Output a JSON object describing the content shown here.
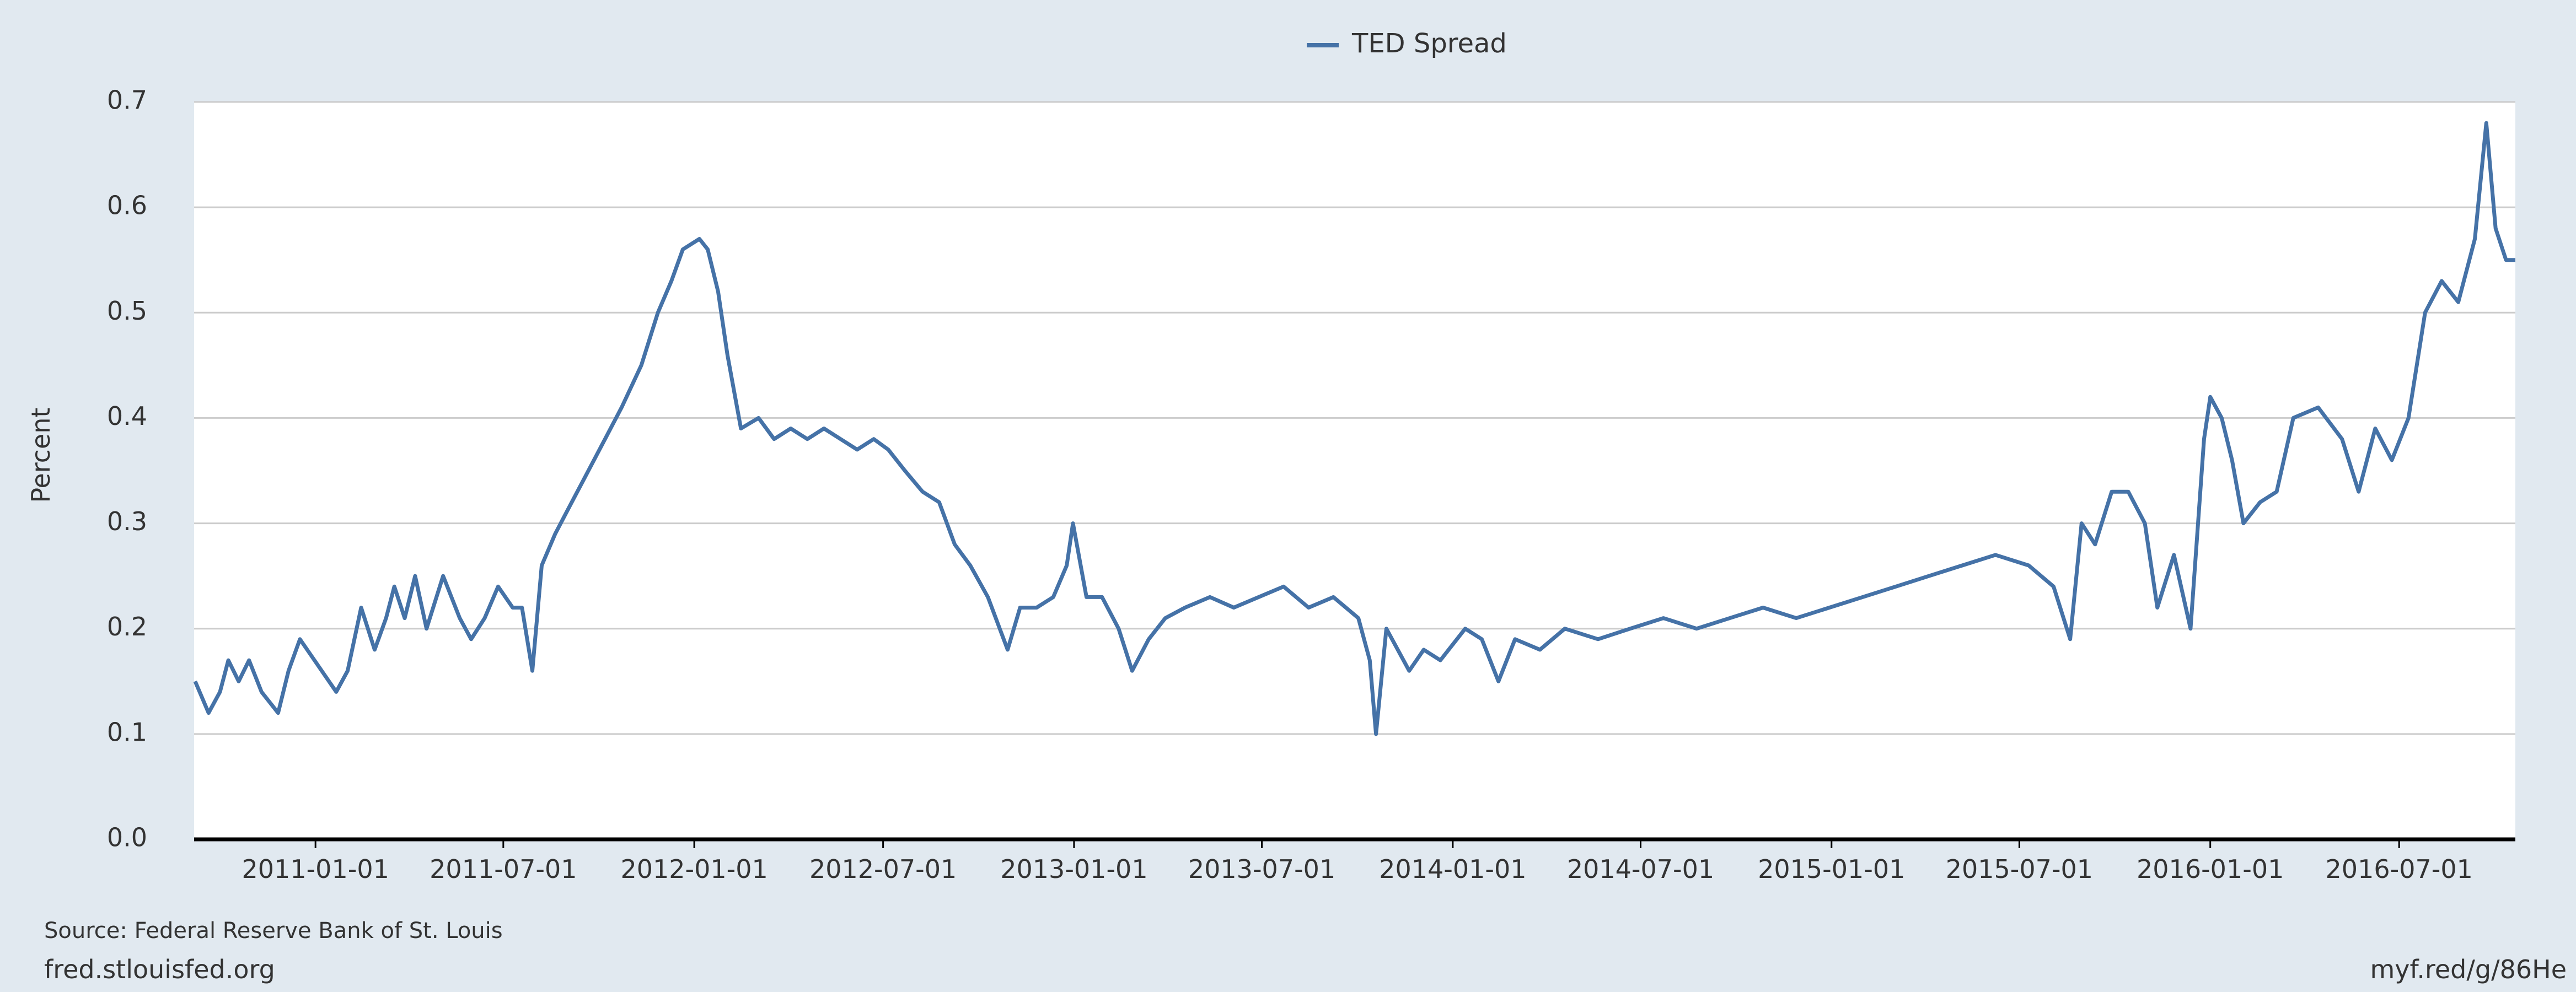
{
  "chart_data": {
    "type": "line",
    "legend_position": "top",
    "grid": true,
    "y_label": "Percent",
    "source": "Source: Federal Reserve Bank of St. Louis",
    "footer_left": "fred.stlouisfed.org",
    "footer_right": "myf.red/g/86He",
    "background": "#e1e9f0",
    "xlim": [
      "2010-09-06",
      "2016-10-21"
    ],
    "xticks": [
      "2011-01-01",
      "2011-07-01",
      "2012-01-01",
      "2012-07-01",
      "2013-01-01",
      "2013-07-01",
      "2014-01-01",
      "2014-07-01",
      "2015-01-01",
      "2015-07-01",
      "2016-01-01",
      "2016-07-01"
    ],
    "ylim": [
      0,
      0.7
    ],
    "yticks": [
      {
        "value": 0,
        "label": "0.0"
      },
      0.1,
      0.2,
      0.3,
      0.4,
      0.5,
      0.6,
      0.7
    ],
    "x": [
      "2010-09-07",
      "2010-09-20",
      "2010-10-01",
      "2010-10-09",
      "2010-10-19",
      "2010-10-29",
      "2010-11-10",
      "2010-11-26",
      "2010-12-06",
      "2010-12-17",
      "2011-01-07",
      "2011-01-21",
      "2011-02-01",
      "2011-02-14",
      "2011-02-27",
      "2011-03-10",
      "2011-03-18",
      "2011-03-28",
      "2011-04-07",
      "2011-04-18",
      "2011-05-04",
      "2011-05-20",
      "2011-05-31",
      "2011-06-13",
      "2011-06-26",
      "2011-07-10",
      "2011-07-19",
      "2011-07-29",
      "2011-08-07",
      "2011-08-20",
      "2011-09-05",
      "2011-09-21",
      "2011-10-07",
      "2011-10-23",
      "2011-11-11",
      "2011-11-27",
      "2011-12-10",
      "2011-12-21",
      "2012-01-06",
      "2012-01-14",
      "2012-01-24",
      "2012-02-02",
      "2012-02-15",
      "2012-03-03",
      "2012-03-18",
      "2012-04-03",
      "2012-04-19",
      "2012-05-05",
      "2012-05-21",
      "2012-06-06",
      "2012-06-22",
      "2012-07-06",
      "2012-07-22",
      "2012-08-08",
      "2012-08-24",
      "2012-09-08",
      "2012-09-23",
      "2012-10-10",
      "2012-10-29",
      "2012-11-10",
      "2012-11-26",
      "2012-12-12",
      "2012-12-25",
      "2012-12-31",
      "2013-01-13",
      "2013-01-28",
      "2013-02-13",
      "2013-02-26",
      "2013-03-14",
      "2013-03-30",
      "2013-04-18",
      "2013-05-12",
      "2013-06-04",
      "2013-06-28",
      "2013-07-22",
      "2013-08-15",
      "2013-09-08",
      "2013-10-02",
      "2013-10-13",
      "2013-10-19",
      "2013-10-29",
      "2013-11-20",
      "2013-12-04",
      "2013-12-20",
      "2014-01-13",
      "2014-01-29",
      "2014-02-14",
      "2014-03-02",
      "2014-03-26",
      "2014-04-19",
      "2014-05-21",
      "2014-06-21",
      "2014-07-23",
      "2014-08-24",
      "2014-09-25",
      "2014-10-27",
      "2014-11-28",
      "2014-12-30",
      "2015-01-31",
      "2015-03-04",
      "2015-04-05",
      "2015-05-07",
      "2015-06-08",
      "2015-07-10",
      "2015-08-03",
      "2015-08-19",
      "2015-08-30",
      "2015-09-12",
      "2015-09-28",
      "2015-10-14",
      "2015-10-30",
      "2015-11-11",
      "2015-11-27",
      "2015-12-13",
      "2015-12-26",
      "2016-01-01",
      "2016-01-12",
      "2016-01-22",
      "2016-02-02",
      "2016-02-18",
      "2016-03-05",
      "2016-03-21",
      "2016-04-14",
      "2016-05-07",
      "2016-05-23",
      "2016-06-08",
      "2016-06-24",
      "2016-07-10",
      "2016-07-26",
      "2016-08-11",
      "2016-08-27",
      "2016-09-12",
      "2016-09-23",
      "2016-10-02",
      "2016-10-12",
      "2016-10-21"
    ],
    "series": [
      {
        "name": "TED Spread",
        "color": "#4572a7",
        "values": [
          0.15,
          0.12,
          0.14,
          0.17,
          0.15,
          0.17,
          0.14,
          0.12,
          0.16,
          0.19,
          0.16,
          0.14,
          0.16,
          0.22,
          0.18,
          0.21,
          0.24,
          0.21,
          0.25,
          0.2,
          0.25,
          0.21,
          0.19,
          0.21,
          0.24,
          0.22,
          0.22,
          0.16,
          0.26,
          0.29,
          0.32,
          0.35,
          0.38,
          0.41,
          0.45,
          0.5,
          0.53,
          0.56,
          0.57,
          0.56,
          0.52,
          0.46,
          0.39,
          0.4,
          0.38,
          0.39,
          0.38,
          0.39,
          0.38,
          0.37,
          0.38,
          0.37,
          0.35,
          0.33,
          0.32,
          0.28,
          0.26,
          0.23,
          0.18,
          0.22,
          0.22,
          0.23,
          0.26,
          0.3,
          0.23,
          0.23,
          0.2,
          0.16,
          0.19,
          0.21,
          0.22,
          0.23,
          0.22,
          0.23,
          0.24,
          0.22,
          0.23,
          0.21,
          0.17,
          0.1,
          0.2,
          0.16,
          0.18,
          0.17,
          0.2,
          0.19,
          0.15,
          0.19,
          0.18,
          0.2,
          0.19,
          0.2,
          0.21,
          0.2,
          0.21,
          0.22,
          0.21,
          0.22,
          0.23,
          0.24,
          0.25,
          0.26,
          0.27,
          0.26,
          0.24,
          0.19,
          0.3,
          0.28,
          0.33,
          0.33,
          0.3,
          0.22,
          0.27,
          0.2,
          0.38,
          0.42,
          0.4,
          0.36,
          0.3,
          0.32,
          0.33,
          0.4,
          0.41,
          0.38,
          0.33,
          0.39,
          0.36,
          0.4,
          0.5,
          0.53,
          0.51,
          0.57,
          0.68,
          0.58,
          0.55,
          0.55
        ]
      }
    ]
  }
}
